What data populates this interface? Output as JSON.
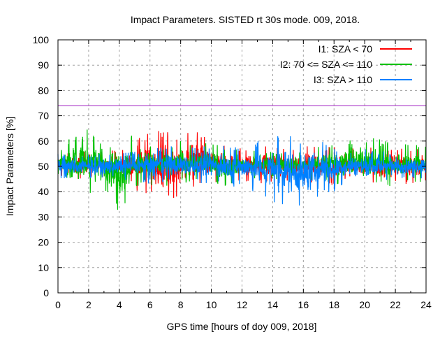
{
  "chart_data": {
    "type": "line",
    "title": "Impact Parameters. SISTED rt 30s mode. 009, 2018.",
    "xlabel": "GPS time [hours of doy 009, 2018]",
    "ylabel": "Impact Parameters [%]",
    "xlim": [
      0,
      24
    ],
    "ylim": [
      0,
      100
    ],
    "xticks": [
      "0",
      "2",
      "4",
      "6",
      "8",
      "10",
      "12",
      "14",
      "16",
      "18",
      "20",
      "22",
      "24"
    ],
    "yticks": [
      "0",
      "10",
      "20",
      "30",
      "40",
      "50",
      "60",
      "70",
      "80",
      "90",
      "100"
    ],
    "grid": true,
    "legend_position": "top-right",
    "threshold": {
      "value": 74,
      "color": "#a020c0"
    },
    "hours": [
      0,
      1,
      2,
      3,
      4,
      5,
      6,
      7,
      8,
      9,
      10,
      11,
      12,
      13,
      14,
      15,
      16,
      17,
      18,
      19,
      20,
      21,
      22,
      23,
      24
    ],
    "series": [
      {
        "name": "I1: SZA < 70",
        "color": "#ff0000",
        "hourly_max": [
          56,
          56,
          56,
          56,
          57,
          60,
          64,
          64,
          62,
          66,
          60,
          58,
          58,
          58,
          58,
          58,
          58,
          58,
          58,
          59,
          58,
          58,
          58,
          57,
          57
        ],
        "hourly_min": [
          45,
          45,
          45,
          45,
          44,
          40,
          38,
          34,
          39,
          40,
          42,
          43,
          43,
          43,
          43,
          43,
          43,
          43,
          42,
          42,
          43,
          42,
          43,
          43,
          44
        ]
      },
      {
        "name": "I2: 70 <= SZA <= 110",
        "color": "#00c000",
        "hourly_max": [
          58,
          62,
          65,
          64,
          63,
          62,
          60,
          59,
          60,
          60,
          59,
          58,
          57,
          56,
          56,
          56,
          56,
          58,
          60,
          61,
          62,
          61,
          59,
          59,
          58
        ],
        "hourly_min": [
          44,
          40,
          38,
          39,
          31,
          41,
          42,
          42,
          43,
          44,
          43,
          42,
          44,
          45,
          45,
          45,
          45,
          44,
          43,
          42,
          42,
          42,
          42,
          43,
          44
        ]
      },
      {
        "name": "I3: SZA > 110",
        "color": "#0080ff",
        "hourly_max": [
          55,
          55,
          55,
          55,
          55,
          56,
          58,
          58,
          58,
          58,
          59,
          58,
          58,
          60,
          62,
          63,
          62,
          61,
          58,
          57,
          57,
          56,
          56,
          55,
          56
        ],
        "hourly_min": [
          45,
          45,
          45,
          45,
          45,
          44,
          43,
          43,
          43,
          42,
          42,
          42,
          42,
          38,
          36,
          34,
          32,
          37,
          40,
          43,
          43,
          44,
          44,
          45,
          45
        ]
      }
    ]
  }
}
